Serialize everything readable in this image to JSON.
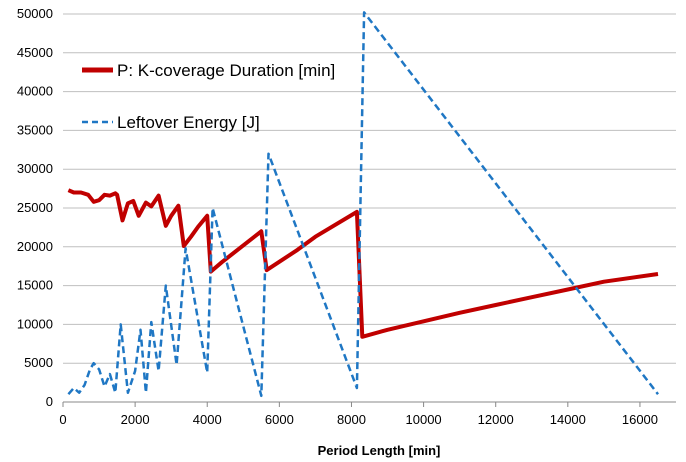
{
  "chart_data": {
    "type": "line",
    "title": "",
    "xlabel": "Period Length [min]",
    "ylabel": "",
    "xlim": [
      0,
      17000
    ],
    "ylim": [
      0,
      50000
    ],
    "x_ticks": [
      0,
      2000,
      4000,
      6000,
      8000,
      10000,
      12000,
      14000,
      16000
    ],
    "y_ticks": [
      0,
      5000,
      10000,
      15000,
      20000,
      25000,
      30000,
      35000,
      40000,
      45000,
      50000
    ],
    "grid": "horizontal",
    "legend_position": "top-left",
    "series": [
      {
        "name": "P: K-coverage Duration [min]",
        "color": "#c00000",
        "style": "solid",
        "points": [
          [
            150,
            27300
          ],
          [
            300,
            27000
          ],
          [
            500,
            27000
          ],
          [
            700,
            26700
          ],
          [
            850,
            25800
          ],
          [
            1000,
            26000
          ],
          [
            1150,
            26700
          ],
          [
            1300,
            26600
          ],
          [
            1450,
            26900
          ],
          [
            1500,
            26700
          ],
          [
            1650,
            23400
          ],
          [
            1800,
            25600
          ],
          [
            1950,
            25900
          ],
          [
            2100,
            24000
          ],
          [
            2300,
            25700
          ],
          [
            2450,
            25200
          ],
          [
            2650,
            26600
          ],
          [
            2850,
            22700
          ],
          [
            3000,
            24000
          ],
          [
            3200,
            25300
          ],
          [
            3350,
            20100
          ],
          [
            3550,
            21300
          ],
          [
            3750,
            22600
          ],
          [
            4000,
            24000
          ],
          [
            4100,
            16800
          ],
          [
            4400,
            18000
          ],
          [
            5500,
            22000
          ],
          [
            5650,
            17000
          ],
          [
            6500,
            19600
          ],
          [
            7000,
            21300
          ],
          [
            8150,
            24500
          ],
          [
            8300,
            8400
          ],
          [
            9000,
            9300
          ],
          [
            10000,
            10400
          ],
          [
            11000,
            11500
          ],
          [
            12000,
            12500
          ],
          [
            13000,
            13500
          ],
          [
            14000,
            14500
          ],
          [
            15000,
            15500
          ],
          [
            16500,
            16500
          ]
        ]
      },
      {
        "name": "Leftover Energy [J]",
        "color": "#1f77c4",
        "style": "dashed",
        "points": [
          [
            150,
            1000
          ],
          [
            300,
            1800
          ],
          [
            450,
            1200
          ],
          [
            600,
            2200
          ],
          [
            750,
            4200
          ],
          [
            850,
            5000
          ],
          [
            1000,
            4200
          ],
          [
            1150,
            2000
          ],
          [
            1300,
            3600
          ],
          [
            1450,
            1200
          ],
          [
            1600,
            10000
          ],
          [
            1800,
            1200
          ],
          [
            2000,
            4000
          ],
          [
            2150,
            9300
          ],
          [
            2300,
            1200
          ],
          [
            2450,
            10300
          ],
          [
            2650,
            4000
          ],
          [
            2850,
            15000
          ],
          [
            3150,
            4800
          ],
          [
            3400,
            19800
          ],
          [
            4000,
            3800
          ],
          [
            4150,
            25000
          ],
          [
            5500,
            800
          ],
          [
            5700,
            32000
          ],
          [
            8150,
            1800
          ],
          [
            8350,
            50200
          ],
          [
            16500,
            1000
          ]
        ]
      }
    ]
  }
}
